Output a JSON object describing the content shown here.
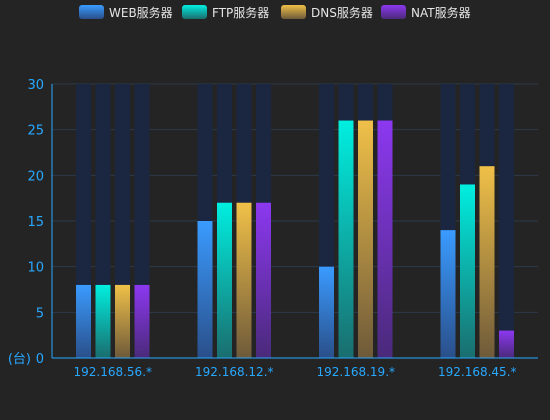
{
  "chart_data": {
    "type": "bar",
    "categories": [
      "192.168.56.*",
      "192.168.12.*",
      "192.168.19.*",
      "192.168.45.*"
    ],
    "series": [
      {
        "name": "WEB服务器",
        "values": [
          8,
          15,
          10,
          14
        ],
        "color_top": "#3a9bff",
        "color_bottom": "#2a4f8a"
      },
      {
        "name": "FTP服务器",
        "values": [
          8,
          17,
          26,
          19
        ],
        "color_top": "#00efe0",
        "color_bottom": "#1a6d6e"
      },
      {
        "name": "DNS服务器",
        "values": [
          8,
          17,
          26,
          21
        ],
        "color_top": "#f0c048",
        "color_bottom": "#6e5a3a"
      },
      {
        "name": "NAT服务器",
        "values": [
          8,
          17,
          26,
          3
        ],
        "color_top": "#8c38f0",
        "color_bottom": "#4a2a7a"
      }
    ],
    "ylim": [
      0,
      30
    ],
    "yticks": [
      0,
      5,
      10,
      15,
      20,
      25,
      30
    ],
    "ylabel": "(台)",
    "legend_position": "top-center",
    "background_bar_color": "#1b2640",
    "axis_color": "#28a8ff",
    "grid": true
  }
}
